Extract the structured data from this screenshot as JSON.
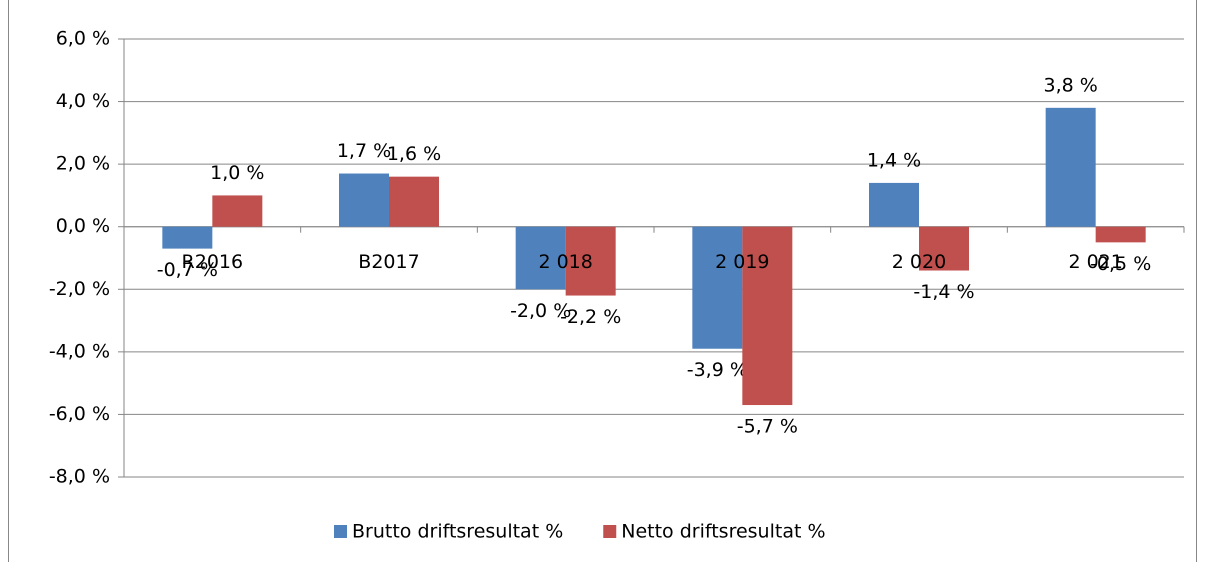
{
  "chart_data": {
    "type": "bar",
    "categories": [
      "R2016",
      "B2017",
      "2 018",
      "2 019",
      "2 020",
      "2 021"
    ],
    "series": [
      {
        "name": "Brutto driftsresultat %",
        "color": "#4f81bd",
        "values": [
          -0.7,
          1.7,
          -2.0,
          -3.9,
          1.4,
          3.8
        ],
        "value_labels": [
          "-0,7 %",
          "1,7 %",
          "-2,0 %",
          "-3,9 %",
          "1,4 %",
          "3,8 %"
        ]
      },
      {
        "name": "Netto driftsresultat %",
        "color": "#c0504d",
        "values": [
          1.0,
          1.6,
          -2.2,
          -5.7,
          -1.4,
          -0.5
        ],
        "value_labels": [
          "1,0 %",
          "1,6 %",
          "-2,2 %",
          "-5,7 %",
          "-1,4 %",
          "-0,5 %"
        ]
      }
    ],
    "ylim": [
      -8,
      6
    ],
    "yticks": [
      {
        "value": -8,
        "label": "-8,0 %"
      },
      {
        "value": -6,
        "label": "-6,0 %"
      },
      {
        "value": -4,
        "label": "-4,0 %"
      },
      {
        "value": -2,
        "label": "-2,0 %"
      },
      {
        "value": 0,
        "label": "0,0 %"
      },
      {
        "value": 2,
        "label": "2,0 %"
      },
      {
        "value": 4,
        "label": "4,0 %"
      },
      {
        "value": 6,
        "label": "6,0 %"
      }
    ],
    "grid": true,
    "legend": "bottom"
  }
}
